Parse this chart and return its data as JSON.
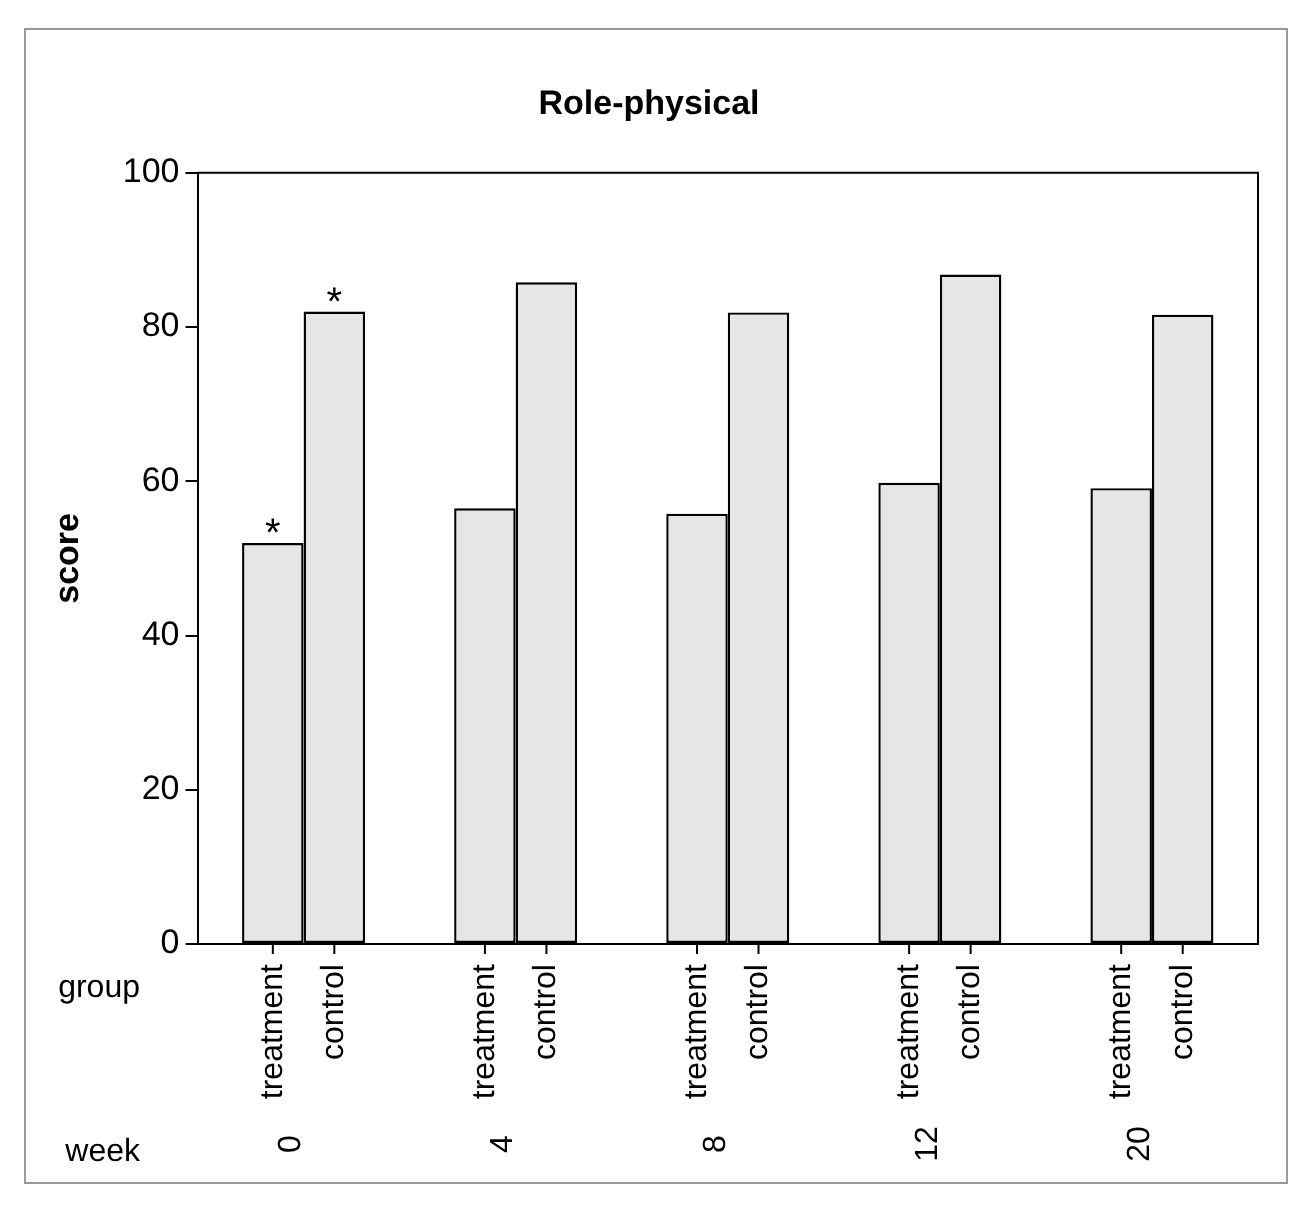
{
  "chart_data": {
    "type": "bar",
    "title": "Role-physical",
    "ylabel": "score",
    "xlabel": "week",
    "categories": [
      "0",
      "4",
      "8",
      "12",
      "20"
    ],
    "series": [
      {
        "name": "treatment",
        "color": "#e6e6e6",
        "values": [
          52,
          56.5,
          55.8,
          59.8,
          59.1
        ]
      },
      {
        "name": "control",
        "color": "#e6e6e6",
        "values": [
          82,
          85.8,
          81.9,
          86.8,
          81.6
        ]
      }
    ],
    "ylim": [
      0,
      100
    ],
    "yticks": [
      0,
      20,
      40,
      60,
      80,
      100
    ],
    "grid": false,
    "legend": false,
    "annotations": [
      "group",
      {
        "text": "*",
        "x": "0",
        "y": 52
      },
      "*"
    ]
  }
}
